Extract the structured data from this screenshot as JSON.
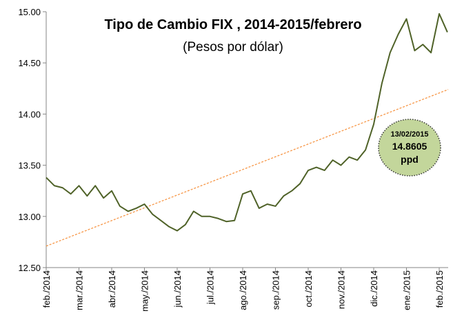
{
  "chart_data": {
    "type": "line",
    "title": "Tipo de Cambio FIX , 2014-2015/febrero",
    "subtitle": "(Pesos por dólar)",
    "categories": [
      "feb./2014",
      null,
      null,
      null,
      "mar./2014",
      null,
      null,
      null,
      "abr./2014",
      null,
      null,
      null,
      "may./2014",
      null,
      null,
      null,
      "jun./2014",
      null,
      null,
      null,
      "jul./2014",
      null,
      null,
      null,
      "ago./2014",
      null,
      null,
      null,
      "sep./2014",
      null,
      null,
      null,
      "oct./2014",
      null,
      null,
      null,
      "nov./2014",
      null,
      null,
      null,
      "dic./2014",
      null,
      null,
      null,
      "ene./2015",
      null,
      null,
      null,
      "feb./2015",
      null
    ],
    "series": [
      {
        "name": "FIX",
        "color": "#4f6228",
        "values": [
          13.38,
          13.3,
          13.28,
          13.22,
          13.3,
          13.2,
          13.3,
          13.18,
          13.25,
          13.1,
          13.05,
          13.08,
          13.12,
          13.02,
          12.96,
          12.9,
          12.86,
          12.92,
          13.05,
          13.0,
          13.0,
          12.98,
          12.95,
          12.96,
          13.22,
          13.25,
          13.08,
          13.12,
          13.1,
          13.2,
          13.25,
          13.32,
          13.45,
          13.48,
          13.45,
          13.55,
          13.5,
          13.58,
          13.55,
          13.65,
          13.9,
          14.3,
          14.6,
          14.78,
          14.93,
          14.62,
          14.68,
          14.6,
          14.98,
          14.8
        ]
      }
    ],
    "trendline": {
      "color": "#f79646",
      "start": 12.71,
      "end": 14.24
    },
    "annotation": {
      "date": "13/02/2015",
      "value": "14.8605",
      "unit": "ppd"
    },
    "ylim": [
      12.5,
      15.0
    ],
    "yticks": [
      {
        "value": 12.5,
        "label": "12.50"
      },
      {
        "value": 13,
        "label": "13.00"
      },
      {
        "value": 13.5,
        "label": "13.50"
      },
      {
        "value": 14,
        "label": "14.00"
      },
      {
        "value": 14.5,
        "label": "14.50"
      },
      {
        "value": 15,
        "label": "15.00"
      }
    ]
  }
}
